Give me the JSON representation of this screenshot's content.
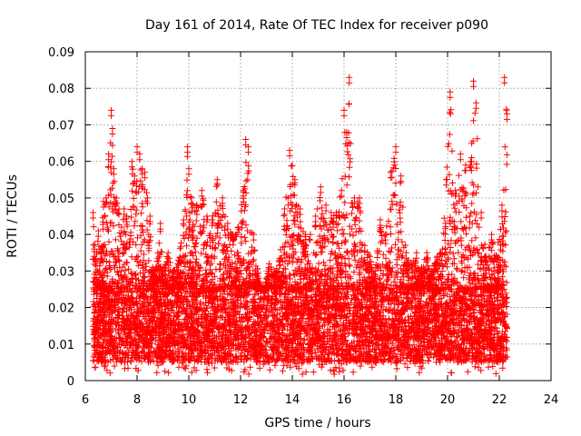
{
  "chart_data": {
    "type": "scatter",
    "title": "Day 161 of 2014, Rate Of TEC Index for receiver p090",
    "xlabel": "GPS time / hours",
    "ylabel": "ROTI / TECUs",
    "xlim": [
      6,
      24
    ],
    "ylim": [
      0,
      0.09
    ],
    "x_ticks": [
      6,
      8,
      10,
      12,
      14,
      16,
      18,
      20,
      22,
      24
    ],
    "x_tick_labels": [
      "6",
      "8",
      "10",
      "12",
      "14",
      "16",
      "18",
      "20",
      "22",
      "24"
    ],
    "y_ticks": [
      0,
      0.01,
      0.02,
      0.03,
      0.04,
      0.05,
      0.06,
      0.07,
      0.08,
      0.09
    ],
    "y_tick_labels": [
      "0",
      "0.01",
      "0.02",
      "0.03",
      "0.04",
      "0.05",
      "0.06",
      "0.07",
      "0.08",
      "0.09"
    ],
    "grid": true,
    "marker": "+",
    "series": [
      {
        "name": "ROTI",
        "color": "#ff0000",
        "x": [
          6.3,
          6.4,
          6.5,
          6.6,
          6.7,
          6.8,
          6.9,
          7.0,
          7.05,
          7.1,
          7.2,
          7.3,
          7.4,
          7.5,
          7.6,
          7.7,
          7.8,
          7.9,
          8.0,
          8.1,
          8.2,
          8.3,
          8.4,
          8.5,
          8.6,
          8.7,
          8.8,
          8.9,
          9.0,
          9.2,
          9.4,
          9.6,
          9.8,
          9.95,
          10.0,
          10.1,
          10.3,
          10.5,
          10.7,
          10.9,
          11.1,
          11.3,
          11.5,
          11.7,
          11.9,
          12.1,
          12.2,
          12.3,
          12.5,
          12.7,
          12.9,
          13.1,
          13.3,
          13.5,
          13.7,
          13.9,
          14.1,
          14.3,
          14.5,
          14.7,
          14.9,
          15.1,
          15.3,
          15.5,
          15.7,
          15.9,
          16.0,
          16.1,
          16.2,
          16.4,
          16.6,
          16.8,
          17.0,
          17.2,
          17.4,
          17.6,
          17.8,
          18.0,
          18.2,
          18.4,
          18.6,
          18.8,
          19.0,
          19.2,
          19.4,
          19.6,
          19.8,
          19.95,
          20.1,
          20.3,
          20.5,
          20.7,
          20.9,
          21.0,
          21.1,
          21.3,
          21.5,
          21.7,
          21.9,
          22.1,
          22.2,
          22.3
        ],
        "y": [
          0.046,
          0.033,
          0.041,
          0.035,
          0.049,
          0.05,
          0.062,
          0.074,
          0.069,
          0.058,
          0.05,
          0.047,
          0.042,
          0.047,
          0.045,
          0.038,
          0.06,
          0.056,
          0.064,
          0.062,
          0.058,
          0.057,
          0.05,
          0.045,
          0.031,
          0.03,
          0.035,
          0.043,
          0.03,
          0.035,
          0.03,
          0.033,
          0.044,
          0.064,
          0.058,
          0.05,
          0.048,
          0.052,
          0.045,
          0.044,
          0.055,
          0.05,
          0.043,
          0.04,
          0.042,
          0.052,
          0.066,
          0.064,
          0.04,
          0.028,
          0.024,
          0.032,
          0.03,
          0.033,
          0.047,
          0.063,
          0.055,
          0.047,
          0.04,
          0.04,
          0.045,
          0.053,
          0.048,
          0.046,
          0.046,
          0.052,
          0.074,
          0.068,
          0.083,
          0.05,
          0.05,
          0.037,
          0.034,
          0.03,
          0.044,
          0.04,
          0.057,
          0.064,
          0.056,
          0.035,
          0.032,
          0.035,
          0.031,
          0.035,
          0.03,
          0.034,
          0.036,
          0.055,
          0.079,
          0.052,
          0.062,
          0.059,
          0.06,
          0.082,
          0.076,
          0.046,
          0.034,
          0.04,
          0.034,
          0.048,
          0.083,
          0.073
        ],
        "baseline_band": [
          0.005,
          0.025
        ]
      }
    ]
  }
}
